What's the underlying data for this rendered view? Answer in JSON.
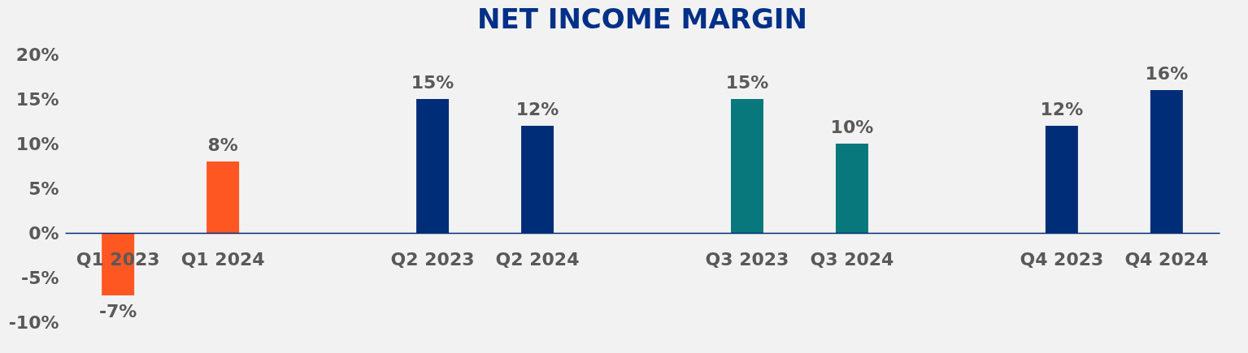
{
  "chart_data": {
    "type": "bar",
    "title": "NET INCOME MARGIN",
    "categories": [
      "Q1 2023",
      "Q1 2024",
      null,
      "Q2 2023",
      "Q2 2024",
      null,
      "Q3 2023",
      "Q3 2024",
      null,
      "Q4 2023",
      "Q4 2024"
    ],
    "values": [
      -7,
      8,
      null,
      15,
      12,
      null,
      15,
      10,
      null,
      12,
      16
    ],
    "colors": [
      "#ff5722",
      "#ff5722",
      null,
      "#002d77",
      "#002d77",
      null,
      "#08787c",
      "#08787c",
      null,
      "#002d77",
      "#002d77"
    ],
    "value_labels": [
      "-7%",
      "8%",
      null,
      "15%",
      "12%",
      null,
      "15%",
      "10%",
      null,
      "12%",
      "16%"
    ],
    "ylim": [
      -10,
      20
    ],
    "yticks": [
      {
        "value": -10,
        "label": "-10%"
      },
      {
        "value": -5,
        "label": "-5%"
      },
      {
        "value": 0,
        "label": "0%"
      },
      {
        "value": 5,
        "label": "5%"
      },
      {
        "value": 10,
        "label": "10%"
      },
      {
        "value": 15,
        "label": "15%"
      },
      {
        "value": 20,
        "label": "20%"
      }
    ],
    "grid": false
  }
}
